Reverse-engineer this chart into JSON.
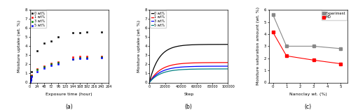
{
  "panel_a": {
    "xlabel": "Exposure time (hour)",
    "ylabel": "Moisture uptake (wt. %)",
    "label": "(a)",
    "xlim": [
      0,
      264
    ],
    "ylim": [
      0,
      8
    ],
    "xticks": [
      0,
      24,
      48,
      72,
      96,
      120,
      144,
      168,
      192,
      216,
      240,
      264
    ],
    "yticks": [
      0,
      1,
      2,
      3,
      4,
      5,
      6,
      7,
      8
    ],
    "series": [
      {
        "label": "0 wt%",
        "color": "black",
        "marker": "s",
        "x": [
          0,
          1,
          2,
          3,
          4,
          6,
          24,
          48,
          72,
          96,
          144,
          168,
          192,
          240
        ],
        "y": [
          0,
          0.15,
          0.3,
          0.5,
          0.7,
          1.2,
          3.5,
          4.3,
          4.6,
          5.0,
          5.5,
          5.5,
          5.6,
          5.6
        ]
      },
      {
        "label": "1 wt%",
        "color": "red",
        "marker": "s",
        "x": [
          0,
          1,
          2,
          3,
          4,
          6,
          24,
          48,
          72,
          96,
          144,
          168,
          192,
          240
        ],
        "y": [
          0,
          0.1,
          0.2,
          0.35,
          0.5,
          0.8,
          1.5,
          1.8,
          2.1,
          2.3,
          2.8,
          2.9,
          2.9,
          2.9
        ]
      },
      {
        "label": "3 wt%",
        "color": "green",
        "marker": "s",
        "x": [
          0,
          1,
          2,
          3,
          4,
          6,
          24,
          48,
          72,
          96,
          144,
          168,
          192,
          240
        ],
        "y": [
          0,
          0.1,
          0.2,
          0.3,
          0.45,
          0.7,
          1.4,
          1.75,
          2.0,
          2.15,
          2.6,
          2.7,
          2.75,
          2.8
        ]
      },
      {
        "label": "5 wt%",
        "color": "blue",
        "marker": "s",
        "x": [
          0,
          1,
          2,
          3,
          4,
          6,
          24,
          48,
          72,
          96,
          144,
          168,
          192,
          240
        ],
        "y": [
          0,
          0.08,
          0.15,
          0.25,
          0.4,
          0.65,
          1.2,
          1.6,
          1.85,
          2.05,
          2.55,
          2.65,
          2.68,
          2.75
        ]
      }
    ]
  },
  "panel_b": {
    "xlabel": "Step",
    "ylabel": "Moisture uptake (wt. %)",
    "label": "(b)",
    "xlim": [
      0,
      100000
    ],
    "ylim": [
      0,
      8
    ],
    "xticks": [
      0,
      20000,
      40000,
      60000,
      80000,
      100000
    ],
    "xtick_labels": [
      "0",
      "20000",
      "40000",
      "60000",
      "80000",
      "100000"
    ],
    "yticks": [
      0,
      1,
      2,
      3,
      4,
      5,
      6,
      7,
      8
    ],
    "series": [
      {
        "label": "0 wt%",
        "color": "black",
        "y_start": 0.0,
        "y_sat": 4.2,
        "tau": 12000
      },
      {
        "label": "1 wt%",
        "color": "red",
        "y_start": 0.0,
        "y_sat": 2.2,
        "tau": 14000
      },
      {
        "label": "3 wt%",
        "color": "blue",
        "y_start": 0.0,
        "y_sat": 1.8,
        "tau": 14000
      },
      {
        "label": "5 wt%",
        "color": "teal",
        "y_start": 0.0,
        "y_sat": 1.5,
        "tau": 14000
      }
    ]
  },
  "panel_c": {
    "xlabel": "Nanoclay wt. (%)",
    "ylabel": "Moisture saturation amount (wt. %)",
    "label": "(c)",
    "xlim": [
      -0.3,
      5.5
    ],
    "ylim": [
      0,
      6
    ],
    "xticks": [
      0,
      1,
      2,
      3,
      4,
      5
    ],
    "yticks": [
      0,
      1,
      2,
      3,
      4,
      5,
      6
    ],
    "series": [
      {
        "label": "Experiment",
        "color": "#888888",
        "marker": "s",
        "x": [
          0,
          1,
          3,
          5
        ],
        "y": [
          5.6,
          3.0,
          3.0,
          2.8
        ]
      },
      {
        "label": "MD",
        "color": "red",
        "marker": "s",
        "x": [
          0,
          1,
          3,
          5
        ],
        "y": [
          4.15,
          2.2,
          1.85,
          1.55
        ]
      }
    ]
  }
}
